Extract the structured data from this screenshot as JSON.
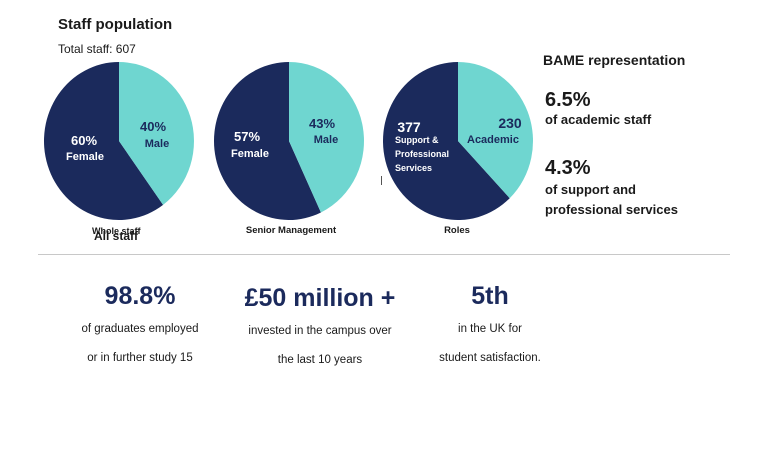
{
  "header": {
    "title": "Staff population",
    "total_staff": "Total staff: 607"
  },
  "chart_data": [
    {
      "type": "pie",
      "title": "",
      "caption_overlap_a": "Whole staff",
      "caption_overlap_b": "All staff",
      "slices": [
        {
          "label": "Female",
          "value": 60,
          "display": "60%",
          "color": "#1b2a5c",
          "text_color": "#ffffff"
        },
        {
          "label": "Male",
          "value": 40,
          "display": "40%",
          "color": "#6fd6d0",
          "text_color": "#1b2a5c"
        }
      ]
    },
    {
      "type": "pie",
      "title": "Senior Management",
      "slices": [
        {
          "label": "Female",
          "value": 57,
          "display": "57%",
          "color": "#1b2a5c",
          "text_color": "#ffffff"
        },
        {
          "label": "Male",
          "value": 43,
          "display": "43%",
          "color": "#6fd6d0",
          "text_color": "#1b2a5c"
        }
      ]
    },
    {
      "type": "pie",
      "title": "Roles",
      "slices": [
        {
          "label": "Support & Professional Services",
          "label_lines": [
            "Support &",
            "Professional",
            "Services"
          ],
          "value": 377,
          "display": "377",
          "color": "#1b2a5c",
          "text_color": "#ffffff"
        },
        {
          "label": "Academic",
          "value": 230,
          "display": "230",
          "color": "#6fd6d0",
          "text_color": "#1b2a5c"
        }
      ]
    }
  ],
  "bame": {
    "title": "BAME representation",
    "academic_value": "6.5%",
    "academic_desc": "of academic staff",
    "support_value": "4.3%",
    "support_desc": "of support and professional services"
  },
  "stats": [
    {
      "value": "98.8%",
      "line1": "of graduates employed",
      "line2": "or in further study 15"
    },
    {
      "value": "£50 million +",
      "line1": "invested in the campus over",
      "line2": "the last 10 years"
    },
    {
      "value": "5th",
      "line1": "in the UK for",
      "line2": "student satisfaction."
    }
  ]
}
